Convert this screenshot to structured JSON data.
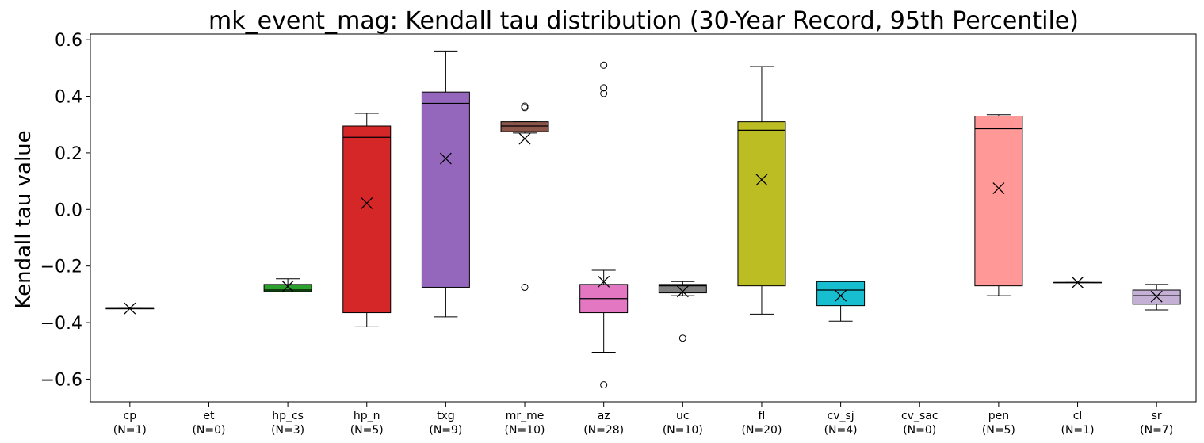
{
  "chart_data": {
    "type": "box",
    "title": "mk_event_mag: Kendall tau distribution (30-Year Record, 95th Percentile)",
    "xlabel": "",
    "ylabel": "Kendall tau value",
    "ylim": [
      -0.68,
      0.62
    ],
    "yticks": [
      0.6,
      0.4,
      0.2,
      0.0,
      -0.2,
      -0.4,
      -0.6
    ],
    "ytick_labels": [
      "0.6",
      "0.4",
      "0.2",
      "0.0",
      "−0.2",
      "−0.4",
      "−0.6"
    ],
    "grid": false,
    "mean_marker": "x",
    "categories": [
      {
        "name": "cp",
        "n_label": "(N=1)",
        "color": "#1f77b4",
        "box": [
          -0.35,
          -0.35,
          -0.35,
          -0.35,
          -0.35
        ],
        "mean": -0.35,
        "outliers": []
      },
      {
        "name": "et",
        "n_label": "(N=0)",
        "color": "#ff7f0e",
        "box": null,
        "mean": null,
        "outliers": []
      },
      {
        "name": "hp_cs",
        "n_label": "(N=3)",
        "color": "#2ca02c",
        "box": [
          -0.29,
          -0.29,
          -0.285,
          -0.265,
          -0.245
        ],
        "mean": -0.272,
        "outliers": []
      },
      {
        "name": "hp_n",
        "n_label": "(N=5)",
        "color": "#d62728",
        "box": [
          -0.415,
          -0.365,
          0.255,
          0.295,
          0.34
        ],
        "mean": 0.022,
        "outliers": []
      },
      {
        "name": "txg",
        "n_label": "(N=9)",
        "color": "#9467bd",
        "box": [
          -0.38,
          -0.275,
          0.375,
          0.415,
          0.56
        ],
        "mean": 0.18,
        "outliers": []
      },
      {
        "name": "mr_me",
        "n_label": "(N=10)",
        "color": "#8c564b",
        "box": [
          0.27,
          0.275,
          0.295,
          0.31,
          0.31
        ],
        "mean": 0.25,
        "outliers": [
          0.36,
          0.365,
          -0.275
        ]
      },
      {
        "name": "az",
        "n_label": "(N=28)",
        "color": "#e377c2",
        "box": [
          -0.505,
          -0.365,
          -0.315,
          -0.265,
          -0.215
        ],
        "mean": -0.255,
        "outliers": [
          0.51,
          0.43,
          0.41,
          -0.62
        ]
      },
      {
        "name": "uc",
        "n_label": "(N=10)",
        "color": "#7f7f7f",
        "box": [
          -0.305,
          -0.295,
          -0.27,
          -0.265,
          -0.255
        ],
        "mean": -0.29,
        "outliers": [
          -0.455
        ]
      },
      {
        "name": "fl",
        "n_label": "(N=20)",
        "color": "#bcbd22",
        "box": [
          -0.37,
          -0.27,
          0.28,
          0.31,
          0.505
        ],
        "mean": 0.105,
        "outliers": []
      },
      {
        "name": "cv_sj",
        "n_label": "(N=4)",
        "color": "#17becf",
        "box": [
          -0.395,
          -0.34,
          -0.285,
          -0.255,
          -0.255
        ],
        "mean": -0.305,
        "outliers": []
      },
      {
        "name": "cv_sac",
        "n_label": "(N=0)",
        "color": "#aec7e8",
        "box": null,
        "mean": null,
        "outliers": []
      },
      {
        "name": "pen",
        "n_label": "(N=5)",
        "color": "#ff9896",
        "box": [
          -0.305,
          -0.27,
          0.285,
          0.33,
          0.335
        ],
        "mean": 0.075,
        "outliers": []
      },
      {
        "name": "cl",
        "n_label": "(N=1)",
        "color": "#98df8a",
        "box": [
          -0.258,
          -0.258,
          -0.258,
          -0.258,
          -0.258
        ],
        "mean": -0.258,
        "outliers": []
      },
      {
        "name": "sr",
        "n_label": "(N=7)",
        "color": "#c5b0d5",
        "box": [
          -0.355,
          -0.335,
          -0.305,
          -0.285,
          -0.265
        ],
        "mean": -0.308,
        "outliers": []
      }
    ]
  }
}
